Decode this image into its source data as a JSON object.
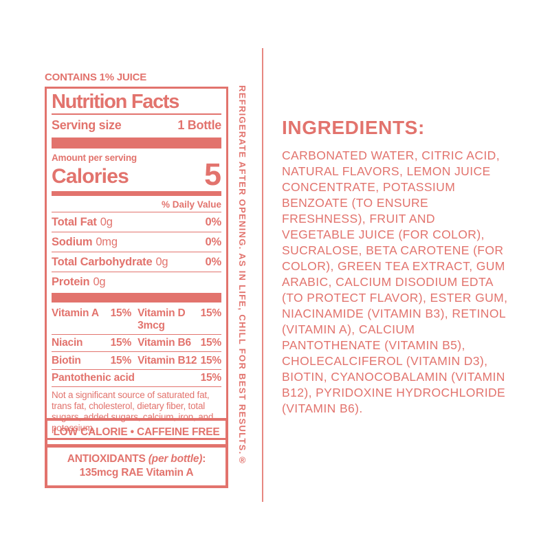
{
  "colors": {
    "coral": "#E2736D",
    "divider": "#E78680",
    "background": "#FFFFFF"
  },
  "label": {
    "contains": "CONTAINS 1% JUICE",
    "title": "Nutrition Facts",
    "serving_size_label": "Serving size",
    "serving_size_value": "1 Bottle",
    "amount_per_serving": "Amount per serving",
    "calories_label": "Calories",
    "calories_value": "5",
    "daily_value_header": "% Daily Value",
    "nutrients": [
      {
        "name": "Total Fat",
        "amount": "0g",
        "dv": "0%"
      },
      {
        "name": "Sodium",
        "amount": "0mg",
        "dv": "0%"
      },
      {
        "name": "Total Carbohydrate",
        "amount": "0g",
        "dv": "0%"
      },
      {
        "name": "Protein",
        "amount": "0g",
        "dv": ""
      }
    ],
    "vitamins": [
      {
        "left_name": "Vitamin A",
        "left_dv": "15%",
        "right_name": "Vitamin D 3mcg",
        "right_dv": "15%"
      },
      {
        "left_name": "Niacin",
        "left_dv": "15%",
        "right_name": "Vitamin B6",
        "right_dv": "15%"
      },
      {
        "left_name": "Biotin",
        "left_dv": "15%",
        "right_name": "Vitamin B12",
        "right_dv": "15%"
      },
      {
        "left_name": "Pantothenic acid",
        "left_dv": "15%",
        "right_name": "",
        "right_dv": ""
      }
    ],
    "footnote": "Not a significant source of saturated fat, trans fat, cholesterol, dietary fiber, total sugars, added sugars, calcium, iron, and potassium.",
    "claims": "LOW CALORIE • CAFFEINE FREE",
    "antioxidants_bold": "ANTIOXIDANTS ",
    "antioxidants_italic": "(per bottle)",
    "antioxidants_colon": ":",
    "antioxidants_value": "135mcg RAE Vitamin A"
  },
  "side_text": "REFRIGERATE AFTER OPENING. AS IN LIFE, CHILL FOR BEST RESULTS.®",
  "ingredients": {
    "heading": "INGREDIENTS:",
    "body": "CARBONATED WATER, CITRIC ACID, NATURAL FLAVORS, LEMON JUICE CONCENTRATE, POTASSIUM BENZOATE (TO ENSURE FRESHNESS), FRUIT AND VEGETABLE JUICE (FOR COLOR), SUCRALOSE, BETA CAROTENE (FOR COLOR), GREEN TEA EXTRACT, GUM ARABIC, CALCIUM DISODIUM EDTA (TO PROTECT FLAVOR), ESTER GUM, NIACINAMIDE (VITAMIN B3), RETINOL (VITAMIN A), CALCIUM PANTOTHENATE (VITAMIN B5), CHOLECALCIFEROL (VITAMIN D3), BIOTIN, CYANOCOBALAMIN (VITAMIN B12), PYRIDOXINE HYDROCHLORIDE (VITAMIN B6)."
  }
}
